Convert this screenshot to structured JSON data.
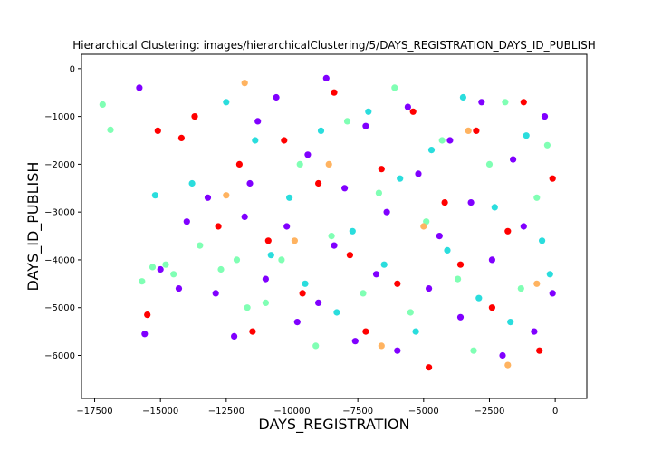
{
  "chart_data": {
    "type": "scatter",
    "title": "Hierarchical Clustering: images/hierarchicalClustering/5/DAYS_REGISTRATION_DAYS_ID_PUBLISH",
    "xlabel": "DAYS_REGISTRATION",
    "ylabel": "DAYS_ID_PUBLISH",
    "xlim": [
      -18000,
      1200
    ],
    "ylim": [
      -6900,
      300
    ],
    "xticks": [
      -17500,
      -15000,
      -12500,
      -10000,
      -7500,
      -5000,
      -2500,
      0
    ],
    "xtick_labels": [
      "−17500",
      "−15000",
      "−12500",
      "−10000",
      "−7500",
      "−5000",
      "−2500",
      "0"
    ],
    "yticks": [
      0,
      -1000,
      -2000,
      -3000,
      -4000,
      -5000,
      -6000
    ],
    "ytick_labels": [
      "0",
      "−1000",
      "−2000",
      "−3000",
      "−4000",
      "−5000",
      "−6000"
    ],
    "grid": false,
    "legend": "none",
    "colormap": "rainbow",
    "series": [
      {
        "color": "#8000ff",
        "x": [
          -15800,
          -15600,
          -15000,
          -14300,
          -14000,
          -13200,
          -12900,
          -12200,
          -11800,
          -11600,
          -11300,
          -11000,
          -10600,
          -10200,
          -9800,
          -9400,
          -9000,
          -8700,
          -8400,
          -8000,
          -7600,
          -7200,
          -6800,
          -6400,
          -6000,
          -5600,
          -5200,
          -4800,
          -4400,
          -4000,
          -3600,
          -3200,
          -2800,
          -2400,
          -2000,
          -1600,
          -1200,
          -800,
          -400,
          -100
        ],
        "y": [
          -400,
          -5550,
          -4200,
          -4600,
          -3200,
          -2700,
          -4700,
          -5600,
          -3100,
          -2400,
          -1100,
          -4400,
          -600,
          -3300,
          -5300,
          -1800,
          -4900,
          -200,
          -3700,
          -2500,
          -5700,
          -1200,
          -4300,
          -3000,
          -5900,
          -800,
          -2200,
          -4600,
          -3500,
          -1500,
          -5200,
          -2800,
          -700,
          -4000,
          -6000,
          -1900,
          -3300,
          -5500,
          -1000,
          -4700
        ]
      },
      {
        "color": "#2adddd",
        "x": [
          -15200,
          -13800,
          -12500,
          -11400,
          -10800,
          -10100,
          -9500,
          -8900,
          -8300,
          -7700,
          -7100,
          -6500,
          -5900,
          -5300,
          -4700,
          -4100,
          -3500,
          -2900,
          -2300,
          -1700,
          -1100,
          -500,
          -200
        ],
        "y": [
          -2650,
          -2400,
          -700,
          -1500,
          -3900,
          -2700,
          -4500,
          -1300,
          -5100,
          -3400,
          -900,
          -4100,
          -2300,
          -5500,
          -1700,
          -3800,
          -600,
          -4800,
          -2900,
          -5300,
          -1400,
          -3600,
          -4300
        ]
      },
      {
        "color": "#80ffb4",
        "x": [
          -17200,
          -16900,
          -15700,
          -15300,
          -14800,
          -14500,
          -13500,
          -12700,
          -12100,
          -11700,
          -11000,
          -10400,
          -9700,
          -9100,
          -8500,
          -7900,
          -7300,
          -6700,
          -6100,
          -5500,
          -4900,
          -4300,
          -3700,
          -3100,
          -2500,
          -1900,
          -1300,
          -700,
          -300
        ],
        "y": [
          -750,
          -1280,
          -4450,
          -4150,
          -4100,
          -4300,
          -3700,
          -4200,
          -4000,
          -5000,
          -4900,
          -4000,
          -2000,
          -5800,
          -3500,
          -1100,
          -4700,
          -2600,
          -400,
          -5100,
          -3200,
          -1500,
          -4400,
          -5900,
          -2000,
          -700,
          -4600,
          -2700,
          -1600
        ]
      },
      {
        "color": "#ffb360",
        "x": [
          -12500,
          -11800,
          -9900,
          -8600,
          -6600,
          -5000,
          -3300,
          -1800,
          -700
        ],
        "y": [
          -2650,
          -300,
          -3600,
          -2000,
          -5800,
          -3300,
          -1300,
          -6200,
          -4500
        ]
      },
      {
        "color": "#ff0000",
        "x": [
          -15500,
          -15100,
          -14200,
          -13700,
          -12800,
          -12000,
          -11500,
          -10900,
          -10300,
          -9600,
          -9000,
          -8400,
          -7800,
          -7200,
          -6600,
          -6000,
          -5400,
          -4800,
          -4200,
          -3600,
          -3000,
          -2400,
          -1800,
          -1200,
          -600,
          -100
        ],
        "y": [
          -5150,
          -1300,
          -1450,
          -1000,
          -3300,
          -2000,
          -5500,
          -3600,
          -1500,
          -4700,
          -2400,
          -500,
          -3900,
          -5500,
          -2100,
          -4500,
          -900,
          -6250,
          -2800,
          -4100,
          -1300,
          -5000,
          -3400,
          -700,
          -5900,
          -2300
        ]
      }
    ]
  }
}
